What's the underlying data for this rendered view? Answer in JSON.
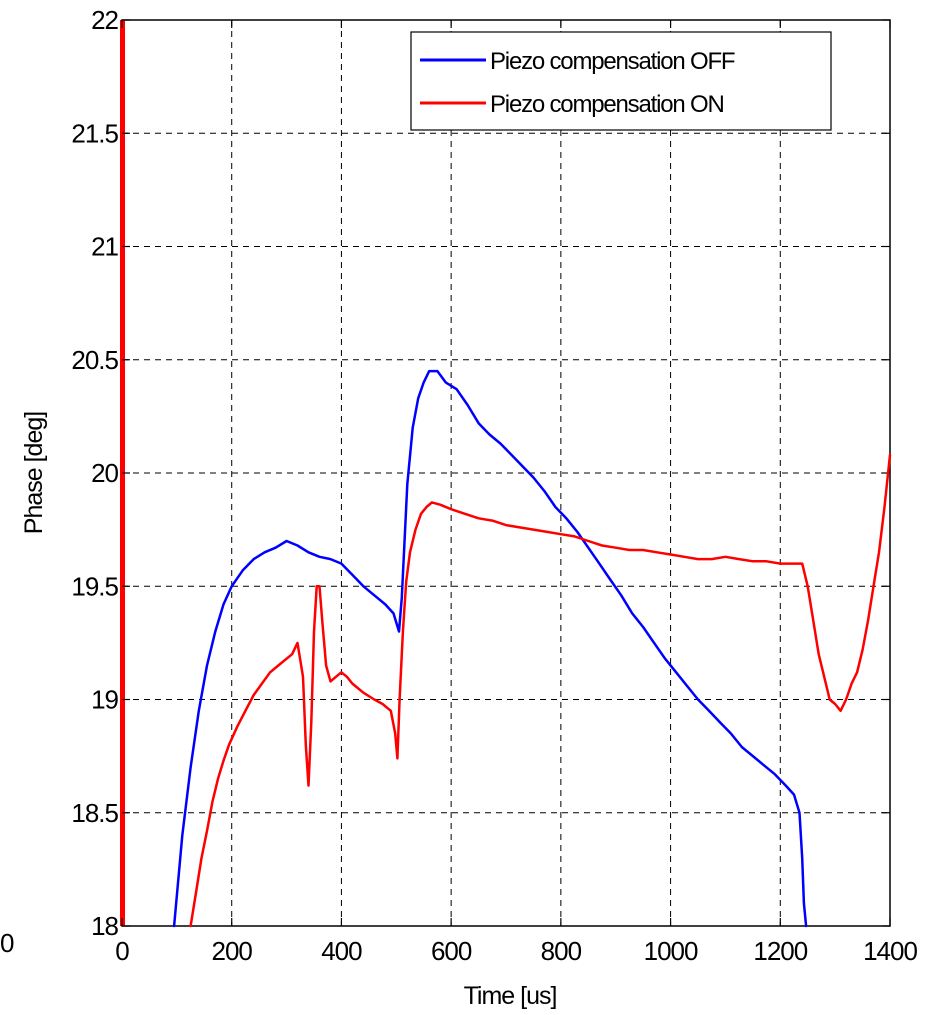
{
  "chart_data": {
    "type": "line",
    "xlabel": "Time [us]",
    "ylabel": "Phase [deg]",
    "xlim": [
      0,
      1400
    ],
    "ylim": [
      18,
      22
    ],
    "x_ticks": [
      0,
      200,
      400,
      600,
      800,
      1000,
      1200,
      1400
    ],
    "y_ticks": [
      18,
      18.5,
      19,
      19.5,
      20,
      20.5,
      21,
      21.5,
      22
    ],
    "x_tick_labels": [
      "0",
      "200",
      "400",
      "600",
      "800",
      "1000",
      "1200",
      "1400"
    ],
    "y_tick_labels": [
      "18",
      "18.5",
      "19",
      "19.5",
      "20",
      "20.5",
      "21",
      "21.5",
      "22"
    ],
    "stray_tick_label": "0",
    "grid": true,
    "legend_position": "top-right",
    "series": [
      {
        "name": "Piezo compensation OFF",
        "color": "#0000ff",
        "x": [
          95,
          110,
          125,
          140,
          155,
          170,
          185,
          200,
          220,
          240,
          260,
          280,
          300,
          320,
          340,
          360,
          380,
          400,
          420,
          440,
          460,
          480,
          495,
          505,
          510,
          520,
          530,
          540,
          550,
          560,
          575,
          590,
          610,
          630,
          650,
          670,
          690,
          710,
          730,
          750,
          770,
          790,
          810,
          830,
          850,
          870,
          890,
          910,
          930,
          950,
          970,
          990,
          1010,
          1030,
          1050,
          1070,
          1090,
          1110,
          1130,
          1150,
          1170,
          1190,
          1210,
          1225,
          1235,
          1240,
          1243,
          1247
        ],
        "y": [
          18.0,
          18.4,
          18.7,
          18.95,
          19.15,
          19.3,
          19.42,
          19.5,
          19.57,
          19.62,
          19.65,
          19.67,
          19.7,
          19.68,
          19.65,
          19.63,
          19.62,
          19.6,
          19.55,
          19.5,
          19.46,
          19.42,
          19.38,
          19.3,
          19.45,
          19.95,
          20.2,
          20.33,
          20.4,
          20.45,
          20.45,
          20.4,
          20.37,
          20.3,
          20.22,
          20.17,
          20.13,
          20.08,
          20.03,
          19.98,
          19.92,
          19.85,
          19.8,
          19.74,
          19.67,
          19.6,
          19.53,
          19.46,
          19.38,
          19.32,
          19.25,
          19.18,
          19.12,
          19.06,
          19.0,
          18.95,
          18.9,
          18.85,
          18.79,
          18.75,
          18.71,
          18.67,
          18.62,
          18.58,
          18.5,
          18.3,
          18.1,
          18.0
        ]
      },
      {
        "name": "Piezo compensation ON",
        "color": "#ff0000",
        "x": [
          125,
          135,
          145,
          155,
          165,
          175,
          185,
          195,
          210,
          225,
          240,
          255,
          270,
          285,
          300,
          310,
          320,
          330,
          335,
          340,
          345,
          350,
          355,
          360,
          365,
          372,
          380,
          390,
          400,
          410,
          420,
          440,
          460,
          475,
          490,
          498,
          502,
          506,
          512,
          518,
          525,
          535,
          545,
          555,
          565,
          580,
          600,
          625,
          650,
          675,
          700,
          725,
          750,
          775,
          800,
          825,
          850,
          875,
          900,
          925,
          950,
          975,
          1000,
          1025,
          1050,
          1075,
          1100,
          1125,
          1150,
          1175,
          1200,
          1220,
          1240,
          1250,
          1260,
          1270,
          1280,
          1290,
          1300,
          1310,
          1320,
          1330,
          1340,
          1350,
          1360,
          1370,
          1380,
          1390,
          1400
        ],
        "y": [
          18.0,
          18.15,
          18.3,
          18.42,
          18.55,
          18.65,
          18.73,
          18.8,
          18.88,
          18.95,
          19.02,
          19.07,
          19.12,
          19.15,
          19.18,
          19.2,
          19.25,
          19.1,
          18.8,
          18.62,
          18.9,
          19.3,
          19.5,
          19.5,
          19.35,
          19.15,
          19.08,
          19.1,
          19.12,
          19.1,
          19.07,
          19.03,
          19.0,
          18.98,
          18.95,
          18.85,
          18.74,
          19.0,
          19.3,
          19.52,
          19.65,
          19.75,
          19.82,
          19.85,
          19.87,
          19.86,
          19.84,
          19.82,
          19.8,
          19.79,
          19.77,
          19.76,
          19.75,
          19.74,
          19.73,
          19.72,
          19.7,
          19.68,
          19.67,
          19.66,
          19.66,
          19.65,
          19.64,
          19.63,
          19.62,
          19.62,
          19.63,
          19.62,
          19.61,
          19.61,
          19.6,
          19.6,
          19.6,
          19.5,
          19.35,
          19.2,
          19.1,
          19.0,
          18.98,
          18.95,
          19.0,
          19.07,
          19.12,
          19.22,
          19.35,
          19.5,
          19.65,
          19.85,
          20.08
        ]
      }
    ]
  }
}
